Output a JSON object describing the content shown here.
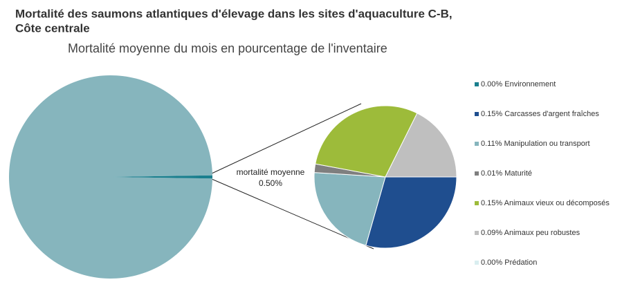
{
  "chart_data": {
    "type": "pie",
    "title": [
      "Mortalité des saumons atlantiques d'élevage dans les sites d'aquaculture C-B,",
      "Côte centrale"
    ],
    "subtitle": "Mortalité moyenne du mois en pourcentage de l'inventaire",
    "main_pie": {
      "categories": [
        null,
        "mortalité moyenne"
      ],
      "values": [
        99.5,
        0.5
      ],
      "value_labels": [
        null,
        "0.50%"
      ],
      "colors": [
        "#86b5bd",
        "#1a7f8e"
      ]
    },
    "detail_pie": {
      "categories": [
        "Environnement",
        "Carcasses d'argent fraîches",
        "Manipulation ou transport",
        "Maturité",
        "Animaux vieux ou décomposés",
        "Animaux peu robustes",
        "Prédation"
      ],
      "values": [
        0,
        0.15,
        0.11,
        0.01,
        0.15,
        0.09,
        0
      ],
      "value_labels": [
        "0.00%",
        "0.15%",
        "0.11%",
        "0.01%",
        "0.15%",
        "0.09%",
        "0.00%"
      ],
      "colors": [
        "#1a7f8e",
        "#1f4e8f",
        "#86b5bd",
        "#7f7f7f",
        "#9dbb3a",
        "#bfbfbf",
        "#d9eef0"
      ]
    }
  }
}
